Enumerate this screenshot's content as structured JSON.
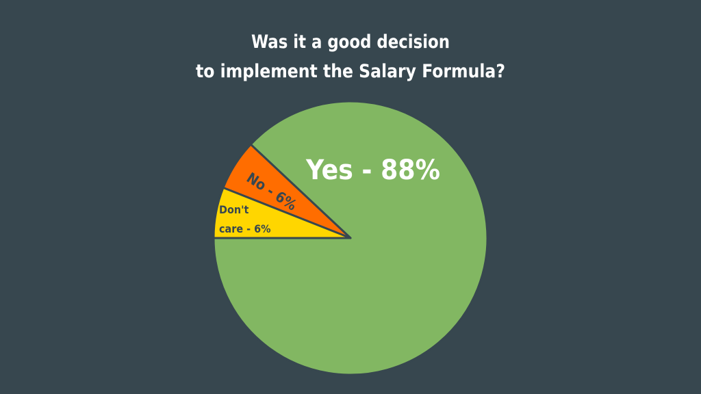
{
  "chart_data": {
    "type": "pie",
    "title": [
      "Was it a good decision",
      "to implement the Salary Formula?"
    ],
    "values": [
      88,
      6,
      6
    ],
    "value_labels": [
      "Yes - 88%",
      "No - 6%",
      "Don't care - 6%"
    ],
    "colors": [
      "#82b762",
      "#ff6d00",
      "#ffd600"
    ]
  }
}
